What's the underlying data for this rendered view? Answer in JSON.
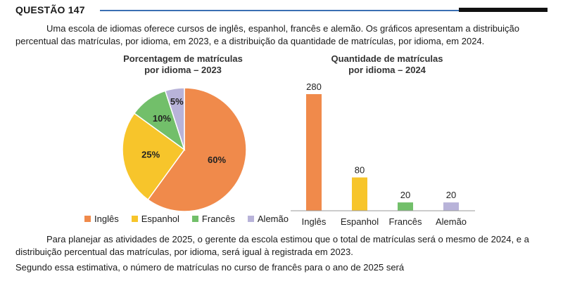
{
  "question_label": "QUESTÃO 147",
  "intro_text": "Uma escola de idiomas oferece cursos de inglês, espanhol, francês e alemão. Os gráficos apresentam a distribuição percentual das matrículas, por idioma, em 2023, e a distribuição da quantidade de matrículas, por idioma, em 2024.",
  "planning_text": "Para planejar as atividades de 2025, o gerente da escola estimou que o total de matrículas será o mesmo de 2024, e a distribuição percentual das matrículas, por idioma, será igual à registrada em 2023.",
  "question_text": "Segundo essa estimativa, o número de matrículas no curso de francês para o ano de 2025 será",
  "colors": {
    "ingles": "#f08a4b",
    "espanhol": "#f7c52b",
    "frances": "#72bf6a",
    "alemao": "#b8b3d9",
    "header_rule": "#3b6fb3"
  },
  "chart_data": [
    {
      "type": "pie",
      "title_line1": "Porcentagem de matrículas",
      "title_line2": "por idioma – 2023",
      "categories": [
        "Inglês",
        "Espanhol",
        "Francês",
        "Alemão"
      ],
      "values": [
        60,
        25,
        10,
        5
      ],
      "data_labels": [
        "60%",
        "25%",
        "10%",
        "5%"
      ],
      "legend_placement": "bottom"
    },
    {
      "type": "bar",
      "title_line1": "Quantidade de matrículas",
      "title_line2": "por idioma – 2024",
      "categories": [
        "Inglês",
        "Espanhol",
        "Francês",
        "Alemão"
      ],
      "values": [
        280,
        80,
        20,
        20
      ],
      "data_labels": [
        "280",
        "80",
        "20",
        "20"
      ],
      "ylim": [
        0,
        280
      ],
      "grid": false
    }
  ]
}
